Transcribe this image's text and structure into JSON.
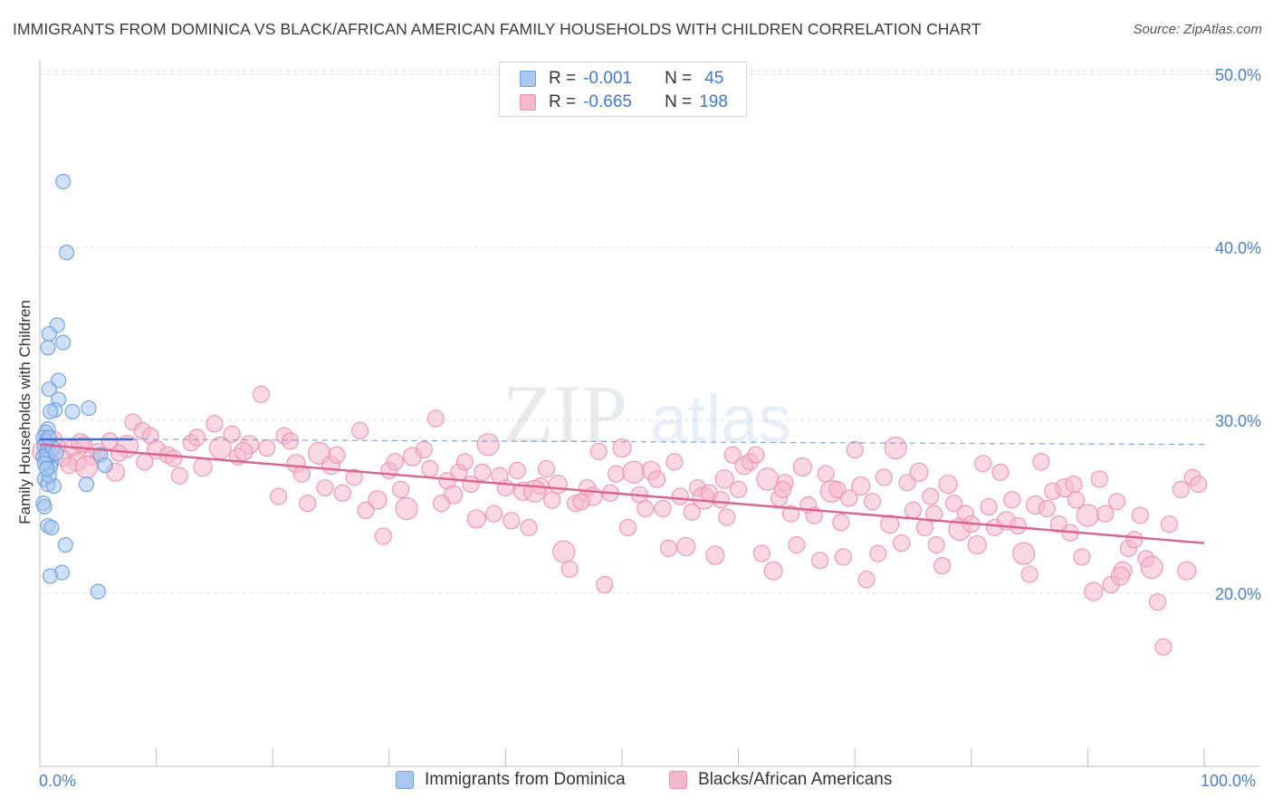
{
  "header": {
    "title": "IMMIGRANTS FROM DOMINICA VS BLACK/AFRICAN AMERICAN FAMILY HOUSEHOLDS WITH CHILDREN CORRELATION CHART",
    "source": "Source: ZipAtlas.com"
  },
  "watermark": {
    "zip": "ZIP",
    "atlas": "atlas"
  },
  "legend_top": {
    "series1": {
      "r_label": "R =",
      "r_value": "-0.001",
      "n_label": "N =",
      "n_value": "45"
    },
    "series2": {
      "r_label": "R =",
      "r_value": "-0.665",
      "n_label": "N =",
      "n_value": "198"
    }
  },
  "x_axis_labels": {
    "min": "0.0%",
    "max": "100.0%"
  },
  "colors": {
    "blue_fill": "#a8c8f0",
    "blue_stroke": "#6f9fde",
    "blue_line": "#3a6fcf",
    "pink_fill": "#f5b8cb",
    "pink_stroke": "#ec93b0",
    "pink_line": "#e0608e",
    "tick_text": "#4a7fcf",
    "grid": "#dddddd"
  },
  "chart_data": {
    "type": "scatter",
    "title": "IMMIGRANTS FROM DOMINICA VS BLACK/AFRICAN AMERICAN FAMILY HOUSEHOLDS WITH CHILDREN CORRELATION CHART",
    "xlabel": "",
    "ylabel": "Family Households with Children",
    "xlim": [
      0,
      100
    ],
    "ylim": [
      10,
      52
    ],
    "y_ticks": [
      20,
      30,
      40,
      50
    ],
    "y_tick_labels": [
      "20.0%",
      "30.0%",
      "40.0%",
      "50.0%"
    ],
    "x_tick_labels": [
      "0.0%",
      "100.0%"
    ],
    "legend": [
      "Immigrants from Dominica",
      "Blacks/African Americans"
    ],
    "series": [
      {
        "name": "Immigrants from Dominica",
        "r": -0.001,
        "n": 45,
        "trend": {
          "x": [
            0,
            8
          ],
          "y": [
            28.9,
            28.9
          ]
        },
        "trend_extended": {
          "x": [
            8,
            100
          ],
          "y": [
            28.9,
            28.6
          ]
        },
        "points": [
          [
            2.0,
            43.8
          ],
          [
            2.3,
            39.7
          ],
          [
            1.5,
            35.5
          ],
          [
            0.8,
            35.0
          ],
          [
            2.0,
            34.5
          ],
          [
            0.7,
            34.2
          ],
          [
            1.6,
            32.3
          ],
          [
            0.8,
            31.8
          ],
          [
            1.6,
            31.2
          ],
          [
            1.3,
            30.6
          ],
          [
            0.9,
            30.5
          ],
          [
            4.2,
            30.7
          ],
          [
            2.8,
            30.5
          ],
          [
            0.7,
            29.5
          ],
          [
            0.5,
            29.3
          ],
          [
            0.3,
            29.0
          ],
          [
            0.5,
            28.8
          ],
          [
            0.4,
            28.5
          ],
          [
            0.6,
            28.2
          ],
          [
            0.3,
            27.9
          ],
          [
            0.7,
            27.8
          ],
          [
            1.0,
            27.6
          ],
          [
            0.9,
            27.3
          ],
          [
            5.2,
            28.0
          ],
          [
            5.6,
            27.4
          ],
          [
            0.4,
            26.6
          ],
          [
            0.7,
            26.3
          ],
          [
            1.2,
            26.2
          ],
          [
            4.0,
            26.3
          ],
          [
            0.8,
            26.8
          ],
          [
            0.3,
            25.2
          ],
          [
            0.4,
            25.0
          ],
          [
            0.7,
            23.9
          ],
          [
            1.0,
            23.8
          ],
          [
            2.2,
            22.8
          ],
          [
            1.9,
            21.2
          ],
          [
            0.9,
            21.0
          ],
          [
            5.0,
            20.1
          ],
          [
            0.5,
            27.7
          ],
          [
            0.6,
            28.0
          ],
          [
            1.1,
            28.4
          ],
          [
            0.4,
            27.5
          ],
          [
            0.8,
            29.0
          ],
          [
            0.6,
            27.2
          ],
          [
            1.4,
            28.1
          ]
        ]
      },
      {
        "name": "Blacks/African Americans",
        "r": -0.665,
        "n": 198,
        "trend": {
          "x": [
            0,
            100
          ],
          "y": [
            28.6,
            22.9
          ]
        },
        "points": [
          [
            0.3,
            28.2
          ],
          [
            1.0,
            28.0
          ],
          [
            1.5,
            28.5
          ],
          [
            2.0,
            27.8
          ],
          [
            2.8,
            28.4
          ],
          [
            3.2,
            27.6
          ],
          [
            3.8,
            28.6
          ],
          [
            4.5,
            27.9
          ],
          [
            5.0,
            28.2
          ],
          [
            6.0,
            28.8
          ],
          [
            6.5,
            27.0
          ],
          [
            7.5,
            28.5
          ],
          [
            8.0,
            29.9
          ],
          [
            8.8,
            29.4
          ],
          [
            9.5,
            29.1
          ],
          [
            10.0,
            28.3
          ],
          [
            11.0,
            28.0
          ],
          [
            11.5,
            27.8
          ],
          [
            12.0,
            26.8
          ],
          [
            13.0,
            28.7
          ],
          [
            14.0,
            27.3
          ],
          [
            15.0,
            29.8
          ],
          [
            15.5,
            28.4
          ],
          [
            16.5,
            29.2
          ],
          [
            17.0,
            27.9
          ],
          [
            18.0,
            28.6
          ],
          [
            19.0,
            31.5
          ],
          [
            19.5,
            28.4
          ],
          [
            20.5,
            25.6
          ],
          [
            21.0,
            29.1
          ],
          [
            22.0,
            27.5
          ],
          [
            22.5,
            26.9
          ],
          [
            23.0,
            25.2
          ],
          [
            24.0,
            28.1
          ],
          [
            24.5,
            26.1
          ],
          [
            25.0,
            27.4
          ],
          [
            26.0,
            25.8
          ],
          [
            27.0,
            26.7
          ],
          [
            27.5,
            29.4
          ],
          [
            28.0,
            24.8
          ],
          [
            29.0,
            25.4
          ],
          [
            29.5,
            23.3
          ],
          [
            30.0,
            27.1
          ],
          [
            31.0,
            26.0
          ],
          [
            31.5,
            24.9
          ],
          [
            32.0,
            27.9
          ],
          [
            33.0,
            28.3
          ],
          [
            33.5,
            27.2
          ],
          [
            34.0,
            30.1
          ],
          [
            35.0,
            26.5
          ],
          [
            35.5,
            25.7
          ],
          [
            36.0,
            27.0
          ],
          [
            36.5,
            27.6
          ],
          [
            37.0,
            26.3
          ],
          [
            38.0,
            27.0
          ],
          [
            38.5,
            28.6
          ],
          [
            39.0,
            24.6
          ],
          [
            40.0,
            26.1
          ],
          [
            40.5,
            24.2
          ],
          [
            41.0,
            27.1
          ],
          [
            41.5,
            25.9
          ],
          [
            42.0,
            23.8
          ],
          [
            43.0,
            26.2
          ],
          [
            43.5,
            27.2
          ],
          [
            44.0,
            25.4
          ],
          [
            44.5,
            26.3
          ],
          [
            45.0,
            22.4
          ],
          [
            45.5,
            21.4
          ],
          [
            46.0,
            25.2
          ],
          [
            47.0,
            26.1
          ],
          [
            47.5,
            25.6
          ],
          [
            48.0,
            28.2
          ],
          [
            48.5,
            20.5
          ],
          [
            49.0,
            25.8
          ],
          [
            49.5,
            26.9
          ],
          [
            50.0,
            28.4
          ],
          [
            50.5,
            23.8
          ],
          [
            51.0,
            27.0
          ],
          [
            51.5,
            25.7
          ],
          [
            52.0,
            24.9
          ],
          [
            52.5,
            27.1
          ],
          [
            53.0,
            26.6
          ],
          [
            54.0,
            22.6
          ],
          [
            54.5,
            27.6
          ],
          [
            55.0,
            25.6
          ],
          [
            55.5,
            22.7
          ],
          [
            56.0,
            24.7
          ],
          [
            56.5,
            26.1
          ],
          [
            57.0,
            25.5
          ],
          [
            57.5,
            25.8
          ],
          [
            58.0,
            22.2
          ],
          [
            58.5,
            25.4
          ],
          [
            59.0,
            24.4
          ],
          [
            59.5,
            28.0
          ],
          [
            60.0,
            26.0
          ],
          [
            60.5,
            27.4
          ],
          [
            61.0,
            27.6
          ],
          [
            61.5,
            28.0
          ],
          [
            62.0,
            22.3
          ],
          [
            62.5,
            26.6
          ],
          [
            63.0,
            21.3
          ],
          [
            63.5,
            25.5
          ],
          [
            64.0,
            26.4
          ],
          [
            64.5,
            24.6
          ],
          [
            65.0,
            22.8
          ],
          [
            65.5,
            27.3
          ],
          [
            66.0,
            25.1
          ],
          [
            66.5,
            24.5
          ],
          [
            67.0,
            21.9
          ],
          [
            67.5,
            26.9
          ],
          [
            68.0,
            25.9
          ],
          [
            68.5,
            26.0
          ],
          [
            69.0,
            22.1
          ],
          [
            69.5,
            25.5
          ],
          [
            70.0,
            28.3
          ],
          [
            70.5,
            26.2
          ],
          [
            71.0,
            20.8
          ],
          [
            71.5,
            25.3
          ],
          [
            72.0,
            22.3
          ],
          [
            72.5,
            26.7
          ],
          [
            73.0,
            24.0
          ],
          [
            73.5,
            28.4
          ],
          [
            74.0,
            22.9
          ],
          [
            74.5,
            26.4
          ],
          [
            75.0,
            24.8
          ],
          [
            75.5,
            27.0
          ],
          [
            76.0,
            23.8
          ],
          [
            76.5,
            25.6
          ],
          [
            77.0,
            22.8
          ],
          [
            77.5,
            21.6
          ],
          [
            78.0,
            26.3
          ],
          [
            78.5,
            25.2
          ],
          [
            79.0,
            23.7
          ],
          [
            79.5,
            24.6
          ],
          [
            80.0,
            24.0
          ],
          [
            80.5,
            22.8
          ],
          [
            81.0,
            27.5
          ],
          [
            81.5,
            25.0
          ],
          [
            82.0,
            23.8
          ],
          [
            82.5,
            27.0
          ],
          [
            83.0,
            24.2
          ],
          [
            83.5,
            25.4
          ],
          [
            84.0,
            23.9
          ],
          [
            84.5,
            22.3
          ],
          [
            85.0,
            21.1
          ],
          [
            85.5,
            25.1
          ],
          [
            86.0,
            27.6
          ],
          [
            86.5,
            24.9
          ],
          [
            87.0,
            25.9
          ],
          [
            87.5,
            24.0
          ],
          [
            88.0,
            26.1
          ],
          [
            88.5,
            23.5
          ],
          [
            89.0,
            25.4
          ],
          [
            89.5,
            22.1
          ],
          [
            90.0,
            24.5
          ],
          [
            90.5,
            20.1
          ],
          [
            91.0,
            26.6
          ],
          [
            91.5,
            24.6
          ],
          [
            92.0,
            20.5
          ],
          [
            92.5,
            25.3
          ],
          [
            93.0,
            21.3
          ],
          [
            93.5,
            22.6
          ],
          [
            94.0,
            23.1
          ],
          [
            94.5,
            24.5
          ],
          [
            95.0,
            22.0
          ],
          [
            95.5,
            21.5
          ],
          [
            96.0,
            19.5
          ],
          [
            96.5,
            16.9
          ],
          [
            97.0,
            24.0
          ],
          [
            98.0,
            26.0
          ],
          [
            98.5,
            21.3
          ],
          [
            99.0,
            26.7
          ],
          [
            99.5,
            26.3
          ],
          [
            1.2,
            28.9
          ],
          [
            2.5,
            27.4
          ],
          [
            3.5,
            28.7
          ],
          [
            4.0,
            27.3
          ],
          [
            6.8,
            28.1
          ],
          [
            9.0,
            27.6
          ],
          [
            13.5,
            29.0
          ],
          [
            17.5,
            28.2
          ],
          [
            21.5,
            28.8
          ],
          [
            25.5,
            28.0
          ],
          [
            30.5,
            27.6
          ],
          [
            34.5,
            25.2
          ],
          [
            37.5,
            24.3
          ],
          [
            39.5,
            26.8
          ],
          [
            42.5,
            25.9
          ],
          [
            46.5,
            25.3
          ],
          [
            53.5,
            24.9
          ],
          [
            58.8,
            26.6
          ],
          [
            63.8,
            26.0
          ],
          [
            68.8,
            24.1
          ],
          [
            76.8,
            24.6
          ],
          [
            88.8,
            26.3
          ],
          [
            92.8,
            21.0
          ]
        ]
      }
    ]
  }
}
